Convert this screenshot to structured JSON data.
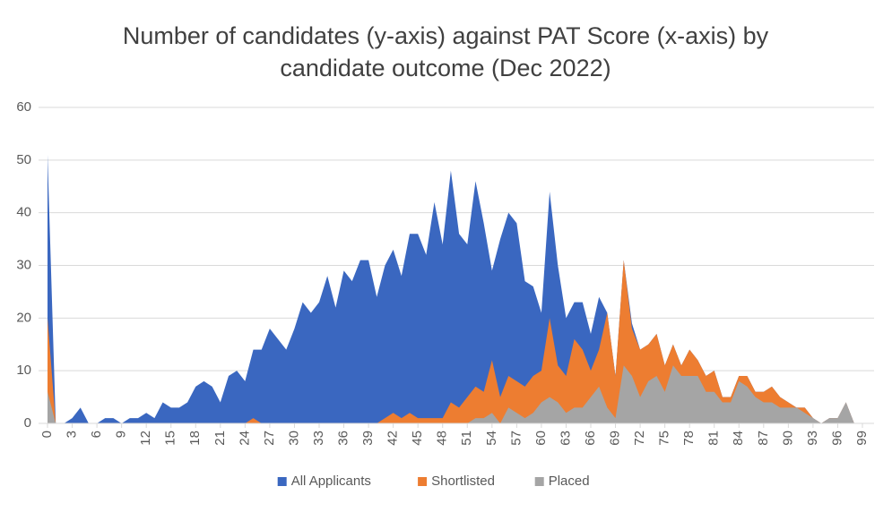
{
  "chart_data": {
    "type": "area",
    "title": [
      "Number of candidates (y-axis) against PAT Score (x-axis) by",
      "candidate outcome (Dec 2022)"
    ],
    "x": [
      0,
      1,
      2,
      3,
      4,
      5,
      6,
      7,
      8,
      9,
      10,
      11,
      12,
      13,
      14,
      15,
      16,
      17,
      18,
      19,
      20,
      21,
      22,
      23,
      24,
      25,
      26,
      27,
      28,
      29,
      30,
      31,
      32,
      33,
      34,
      35,
      36,
      37,
      38,
      39,
      40,
      41,
      42,
      43,
      44,
      45,
      46,
      47,
      48,
      49,
      50,
      51,
      52,
      53,
      54,
      55,
      56,
      57,
      58,
      59,
      60,
      61,
      62,
      63,
      64,
      65,
      66,
      67,
      68,
      69,
      70,
      71,
      72,
      73,
      74,
      75,
      76,
      77,
      78,
      79,
      80,
      81,
      82,
      83,
      84,
      85,
      86,
      87,
      88,
      89,
      90,
      91,
      92,
      93,
      94,
      95,
      96,
      97,
      98,
      99
    ],
    "xlim": [
      0,
      99
    ],
    "xticks": [
      0,
      3,
      6,
      9,
      12,
      15,
      18,
      21,
      24,
      27,
      30,
      33,
      36,
      39,
      42,
      45,
      48,
      51,
      54,
      57,
      60,
      63,
      66,
      69,
      72,
      75,
      78,
      81,
      84,
      87,
      90,
      93,
      96,
      99
    ],
    "ylim": [
      0,
      60
    ],
    "yticks": [
      0,
      10,
      20,
      30,
      40,
      50,
      60
    ],
    "grid": true,
    "legend": "bottom",
    "series": [
      {
        "name": "All Applicants",
        "color": "#3a67c0",
        "values": [
          51,
          0,
          0,
          1,
          3,
          0,
          0,
          1,
          1,
          0,
          1,
          1,
          2,
          1,
          4,
          3,
          3,
          4,
          7,
          8,
          7,
          4,
          9,
          10,
          8,
          14,
          14,
          18,
          16,
          14,
          18,
          23,
          21,
          23,
          28,
          22,
          29,
          27,
          31,
          31,
          24,
          30,
          33,
          28,
          36,
          36,
          32,
          42,
          34,
          48,
          36,
          34,
          46,
          38,
          29,
          35,
          40,
          38,
          27,
          26,
          21,
          44,
          30,
          20,
          23,
          23,
          17,
          24,
          21,
          9,
          31,
          19,
          14,
          15,
          17,
          11,
          15,
          11,
          14,
          12,
          9,
          10,
          5,
          5,
          9,
          9,
          6,
          6,
          7,
          5,
          4,
          3,
          3,
          1,
          0,
          1,
          1,
          4,
          0,
          0
        ]
      },
      {
        "name": "Shortlisted",
        "color": "#ed7d31",
        "values": [
          20,
          0,
          0,
          0,
          0,
          0,
          0,
          0,
          0,
          0,
          0,
          0,
          0,
          0,
          0,
          0,
          0,
          0,
          0,
          0,
          0,
          0,
          0,
          0,
          0,
          1,
          0,
          0,
          0,
          0,
          0,
          0,
          0,
          0,
          0,
          0,
          0,
          0,
          0,
          0,
          0,
          1,
          2,
          1,
          2,
          1,
          1,
          1,
          1,
          4,
          3,
          5,
          7,
          6,
          12,
          5,
          9,
          8,
          7,
          9,
          10,
          20,
          11,
          9,
          16,
          14,
          10,
          14,
          21,
          9,
          31,
          18,
          14,
          15,
          17,
          11,
          15,
          11,
          14,
          12,
          9,
          10,
          5,
          5,
          9,
          9,
          6,
          6,
          7,
          5,
          4,
          3,
          3,
          1,
          0,
          1,
          1,
          4,
          0,
          0
        ]
      },
      {
        "name": "Placed",
        "color": "#a5a5a5",
        "values": [
          6,
          0,
          0,
          0,
          0,
          0,
          0,
          0,
          0,
          0,
          0,
          0,
          0,
          0,
          0,
          0,
          0,
          0,
          0,
          0,
          0,
          0,
          0,
          0,
          0,
          0,
          0,
          0,
          0,
          0,
          0,
          0,
          0,
          0,
          0,
          0,
          0,
          0,
          0,
          0,
          0,
          0,
          0,
          0,
          0,
          0,
          0,
          0,
          0,
          0,
          0,
          0,
          1,
          1,
          2,
          0,
          3,
          2,
          1,
          2,
          4,
          5,
          4,
          2,
          3,
          3,
          5,
          7,
          3,
          1,
          11,
          9,
          5,
          8,
          9,
          6,
          11,
          9,
          9,
          9,
          6,
          6,
          4,
          4,
          8,
          7,
          5,
          4,
          4,
          3,
          3,
          3,
          2,
          1,
          0,
          1,
          1,
          4,
          0,
          0
        ]
      }
    ]
  }
}
